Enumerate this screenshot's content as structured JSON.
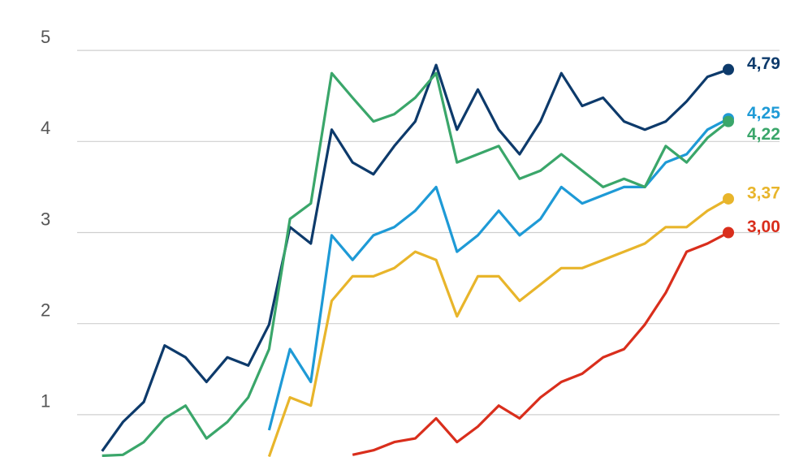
{
  "chart_data": {
    "type": "line",
    "ylim": [
      0.5,
      5.5
    ],
    "yticks": [
      1,
      2,
      3,
      4,
      5
    ],
    "grid": true,
    "series": [
      {
        "name": null,
        "color": "#0d3a6b",
        "values": [
          null,
          0.6,
          0.92,
          1.14,
          1.76,
          1.63,
          1.36,
          1.63,
          1.54,
          1.99,
          3.06,
          2.88,
          4.13,
          3.77,
          3.64,
          3.95,
          4.22,
          4.84,
          4.13,
          4.57,
          4.13,
          3.86,
          4.22,
          4.75,
          4.39,
          4.48,
          4.22,
          4.13,
          4.22,
          4.44,
          4.71,
          4.79
        ],
        "value_labels": [
          null,
          null,
          null,
          null,
          null,
          null,
          null,
          null,
          null,
          null,
          null,
          null,
          null,
          null,
          null,
          null,
          null,
          null,
          null,
          null,
          null,
          null,
          null,
          null,
          null,
          null,
          null,
          null,
          null,
          null,
          null,
          "4,79"
        ]
      },
      {
        "name": null,
        "color": "#1e9ad6",
        "values": [
          null,
          null,
          null,
          null,
          null,
          null,
          null,
          null,
          null,
          0.83,
          1.72,
          1.36,
          2.97,
          2.7,
          2.97,
          3.06,
          3.24,
          3.5,
          2.79,
          2.97,
          3.24,
          2.97,
          3.15,
          3.5,
          3.32,
          3.41,
          3.5,
          3.5,
          3.77,
          3.86,
          4.13,
          4.25
        ],
        "value_labels": [
          null,
          null,
          null,
          null,
          null,
          null,
          null,
          null,
          null,
          null,
          null,
          null,
          null,
          null,
          null,
          null,
          null,
          null,
          null,
          null,
          null,
          null,
          null,
          null,
          null,
          null,
          null,
          null,
          null,
          null,
          null,
          "4,25"
        ]
      },
      {
        "name": null,
        "color": "#3aa66a",
        "values": [
          null,
          0.55,
          0.56,
          0.7,
          0.96,
          1.1,
          0.74,
          0.92,
          1.19,
          1.72,
          3.15,
          3.32,
          4.75,
          4.48,
          4.22,
          4.3,
          4.48,
          4.75,
          3.77,
          3.86,
          3.95,
          3.59,
          3.68,
          3.86,
          3.68,
          3.5,
          3.59,
          3.5,
          3.95,
          3.77,
          4.04,
          4.22
        ],
        "value_labels": [
          null,
          null,
          null,
          null,
          null,
          null,
          null,
          null,
          null,
          null,
          null,
          null,
          null,
          null,
          null,
          null,
          null,
          null,
          null,
          null,
          null,
          null,
          null,
          null,
          null,
          null,
          null,
          null,
          null,
          null,
          null,
          "4,22"
        ]
      },
      {
        "name": null,
        "color": "#e8b52b",
        "values": [
          null,
          null,
          null,
          null,
          null,
          null,
          null,
          null,
          null,
          0.54,
          1.19,
          1.1,
          2.25,
          2.52,
          2.52,
          2.61,
          2.79,
          2.7,
          2.08,
          2.52,
          2.52,
          2.25,
          2.43,
          2.61,
          2.61,
          2.7,
          2.79,
          2.88,
          3.06,
          3.06,
          3.24,
          3.37
        ],
        "value_labels": [
          null,
          null,
          null,
          null,
          null,
          null,
          null,
          null,
          null,
          null,
          null,
          null,
          null,
          null,
          null,
          null,
          null,
          null,
          null,
          null,
          null,
          null,
          null,
          null,
          null,
          null,
          null,
          null,
          null,
          null,
          null,
          "3,37"
        ]
      },
      {
        "name": null,
        "color": "#d92e1c",
        "values": [
          null,
          null,
          null,
          null,
          null,
          null,
          null,
          null,
          null,
          null,
          null,
          null,
          null,
          0.56,
          0.61,
          0.7,
          0.74,
          0.96,
          0.7,
          0.87,
          1.1,
          0.96,
          1.19,
          1.36,
          1.45,
          1.63,
          1.72,
          1.99,
          2.34,
          2.79,
          2.88,
          3.0
        ],
        "value_labels": [
          null,
          null,
          null,
          null,
          null,
          null,
          null,
          null,
          null,
          null,
          null,
          null,
          null,
          null,
          null,
          null,
          null,
          null,
          null,
          null,
          null,
          null,
          null,
          null,
          null,
          null,
          null,
          null,
          null,
          null,
          null,
          "3,00"
        ]
      }
    ]
  }
}
